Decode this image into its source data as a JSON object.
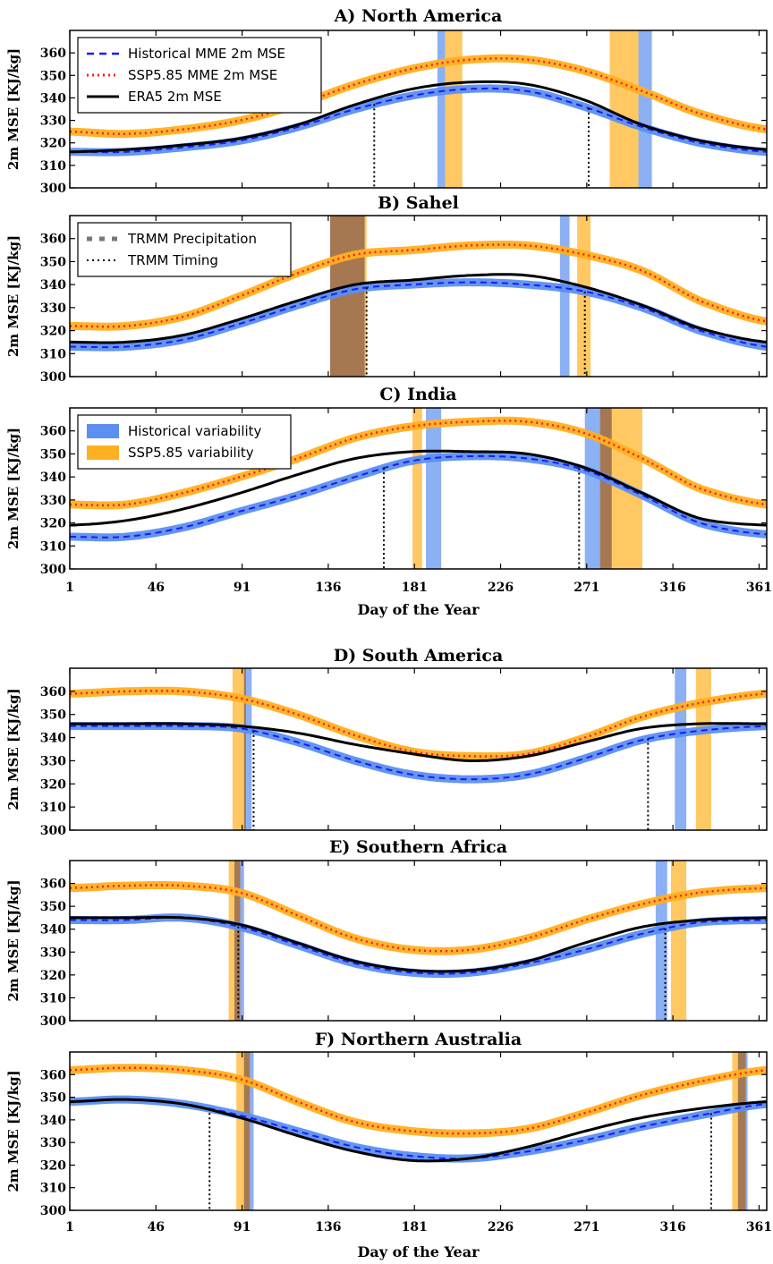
{
  "chart_data": [
    {
      "type": "line",
      "title": "A) North America",
      "ylabel": "2m MSE [KJ/kg]",
      "xlim": [
        1,
        365
      ],
      "ylim": [
        300,
        370
      ],
      "yticks": [
        300,
        310,
        320,
        330,
        340,
        350,
        360
      ],
      "xticks": [
        1,
        46,
        91,
        136,
        181,
        226,
        271,
        316,
        361
      ],
      "series": [
        {
          "name": "Historical MME 2m MSE",
          "style": "dashed",
          "color": "#1a1aff",
          "band_color": "#5b8ff0",
          "x": [
            1,
            30,
            60,
            90,
            120,
            150,
            180,
            210,
            240,
            270,
            300,
            330,
            365
          ],
          "y": [
            316,
            316,
            318,
            321,
            327,
            335,
            341,
            344,
            343,
            336,
            327,
            320,
            316
          ]
        },
        {
          "name": "SSP5.85 MME 2m MSE",
          "style": "dotted",
          "color": "#ff1a1a",
          "band_color": "#ffb020",
          "x": [
            1,
            30,
            60,
            90,
            120,
            150,
            180,
            210,
            240,
            270,
            300,
            330,
            365
          ],
          "y": [
            325,
            324,
            326,
            330,
            337,
            346,
            353,
            357,
            357,
            352,
            343,
            333,
            326
          ]
        },
        {
          "name": "ERA5 2m MSE",
          "style": "solid",
          "color": "#000000",
          "x": [
            1,
            30,
            60,
            90,
            120,
            150,
            180,
            210,
            240,
            270,
            300,
            330,
            365
          ],
          "y": [
            316,
            317,
            319,
            322,
            328,
            337,
            344,
            347,
            346,
            339,
            328,
            321,
            317
          ]
        }
      ],
      "hist_onset": [
        193,
        197
      ],
      "hist_withdrawal": [
        298,
        305
      ],
      "ssp_onset": [
        197,
        206
      ],
      "ssp_withdrawal": [
        283,
        298
      ],
      "timing_lines": [
        160,
        272
      ],
      "legend": [
        "Historical MME 2m MSE",
        "SSP5.85 MME 2m MSE",
        "ERA5 2m MSE"
      ],
      "legend_location": "upper-left"
    },
    {
      "type": "line",
      "title": "B) Sahel",
      "ylabel": "2m MSE [KJ/kg]",
      "xlim": [
        1,
        365
      ],
      "ylim": [
        300,
        370
      ],
      "yticks": [
        300,
        310,
        320,
        330,
        340,
        350,
        360
      ],
      "xticks": [
        1,
        46,
        91,
        136,
        181,
        226,
        271,
        316,
        361
      ],
      "series": [
        {
          "name": "Historical MME 2m MSE",
          "style": "dashed",
          "color": "#1a1aff",
          "band_color": "#5b8ff0",
          "x": [
            1,
            30,
            60,
            90,
            120,
            150,
            180,
            210,
            240,
            270,
            300,
            330,
            365
          ],
          "y": [
            313,
            313,
            316,
            323,
            331,
            338,
            340,
            341,
            340,
            337,
            330,
            320,
            313
          ]
        },
        {
          "name": "SSP5.85 MME 2m MSE",
          "style": "dotted",
          "color": "#ff1a1a",
          "band_color": "#ffb020",
          "x": [
            1,
            30,
            60,
            90,
            120,
            150,
            180,
            210,
            240,
            270,
            300,
            330,
            365
          ],
          "y": [
            322,
            322,
            326,
            335,
            345,
            353,
            355,
            357,
            357,
            353,
            346,
            333,
            324
          ]
        },
        {
          "name": "ERA5 2m MSE",
          "style": "solid",
          "color": "#000000",
          "x": [
            1,
            30,
            60,
            90,
            120,
            150,
            180,
            210,
            240,
            270,
            300,
            330,
            365
          ],
          "y": [
            315,
            315,
            318,
            325,
            333,
            340,
            342,
            344,
            344,
            339,
            331,
            321,
            315
          ]
        }
      ],
      "hist_onset": [
        137,
        155
      ],
      "hist_withdrawal": [
        257,
        262
      ],
      "ssp_onset": [
        137,
        156
      ],
      "ssp_withdrawal": [
        266,
        273
      ],
      "timing_lines": [
        156,
        270
      ],
      "legend": [
        "TRMM Precipitation",
        "TRMM Timing"
      ],
      "legend_location": "upper-left"
    },
    {
      "type": "line",
      "title": "C) India",
      "ylabel": "2m MSE [KJ/kg]",
      "xlabel": "Day of the Year",
      "xlim": [
        1,
        365
      ],
      "ylim": [
        300,
        370
      ],
      "yticks": [
        300,
        310,
        320,
        330,
        340,
        350,
        360
      ],
      "xticks": [
        1,
        46,
        91,
        136,
        181,
        226,
        271,
        316,
        361
      ],
      "series": [
        {
          "name": "Historical MME 2m MSE",
          "style": "dashed",
          "color": "#1a1aff",
          "band_color": "#5b8ff0",
          "x": [
            1,
            30,
            60,
            90,
            120,
            150,
            180,
            210,
            240,
            270,
            300,
            330,
            365
          ],
          "y": [
            314,
            314,
            318,
            325,
            332,
            340,
            347,
            349,
            348,
            343,
            332,
            320,
            315
          ]
        },
        {
          "name": "SSP5.85 MME 2m MSE",
          "style": "dotted",
          "color": "#ff1a1a",
          "band_color": "#ffb020",
          "x": [
            1,
            30,
            60,
            90,
            120,
            150,
            180,
            210,
            240,
            270,
            300,
            330,
            365
          ],
          "y": [
            328,
            328,
            333,
            340,
            348,
            357,
            362,
            364,
            364,
            359,
            348,
            335,
            328
          ]
        },
        {
          "name": "ERA5 2m MSE",
          "style": "solid",
          "color": "#000000",
          "x": [
            1,
            30,
            60,
            90,
            120,
            150,
            180,
            210,
            240,
            270,
            300,
            330,
            365
          ],
          "y": [
            319,
            321,
            326,
            333,
            341,
            348,
            351,
            351,
            350,
            344,
            333,
            322,
            319
          ]
        }
      ],
      "hist_onset": [
        187,
        195
      ],
      "hist_withdrawal": [
        270,
        284
      ],
      "ssp_onset": [
        180,
        185
      ],
      "ssp_withdrawal": [
        278,
        300
      ],
      "timing_lines": [
        165,
        267
      ],
      "legend": [
        "Historical variability",
        "SSP5.85 variability"
      ],
      "legend_location": "upper-left"
    },
    {
      "type": "line",
      "title": "D) South America",
      "ylabel": "2m MSE [KJ/kg]",
      "xlim": [
        1,
        365
      ],
      "ylim": [
        300,
        370
      ],
      "yticks": [
        300,
        310,
        320,
        330,
        340,
        350,
        360
      ],
      "xticks": [
        1,
        46,
        91,
        136,
        181,
        226,
        271,
        316,
        361
      ],
      "series": [
        {
          "name": "Historical MME 2m MSE",
          "style": "dashed",
          "color": "#1a1aff",
          "band_color": "#5b8ff0",
          "x": [
            1,
            30,
            60,
            90,
            120,
            150,
            180,
            210,
            240,
            270,
            300,
            330,
            365
          ],
          "y": [
            345,
            345,
            345,
            344,
            338,
            330,
            324,
            322,
            324,
            331,
            339,
            343,
            345
          ]
        },
        {
          "name": "SSP5.85 MME 2m MSE",
          "style": "dotted",
          "color": "#ff1a1a",
          "band_color": "#ffb020",
          "x": [
            1,
            30,
            60,
            90,
            120,
            150,
            180,
            210,
            240,
            270,
            300,
            330,
            365
          ],
          "y": [
            359,
            360,
            360,
            357,
            350,
            341,
            334,
            332,
            333,
            340,
            349,
            355,
            359
          ]
        },
        {
          "name": "ERA5 2m MSE",
          "style": "solid",
          "color": "#000000",
          "x": [
            1,
            30,
            60,
            90,
            120,
            150,
            180,
            210,
            240,
            270,
            300,
            330,
            365
          ],
          "y": [
            346,
            346,
            346,
            345,
            342,
            337,
            333,
            330,
            332,
            338,
            344,
            346,
            346
          ]
        }
      ],
      "hist_onset": [
        92,
        96
      ],
      "hist_withdrawal": [
        317,
        323
      ],
      "ssp_onset": [
        86,
        93
      ],
      "ssp_withdrawal": [
        328,
        336
      ],
      "timing_lines": [
        97,
        303
      ],
      "legend_location": "none"
    },
    {
      "type": "line",
      "title": "E) Southern Africa",
      "ylabel": "2m MSE [KJ/kg]",
      "xlim": [
        1,
        365
      ],
      "ylim": [
        300,
        370
      ],
      "yticks": [
        300,
        310,
        320,
        330,
        340,
        350,
        360
      ],
      "xticks": [
        1,
        46,
        91,
        136,
        181,
        226,
        271,
        316,
        361
      ],
      "series": [
        {
          "name": "Historical MME 2m MSE",
          "style": "dashed",
          "color": "#1a1aff",
          "band_color": "#5b8ff0",
          "x": [
            1,
            30,
            60,
            90,
            120,
            150,
            180,
            210,
            240,
            270,
            300,
            330,
            365
          ],
          "y": [
            344,
            344,
            345,
            341,
            333,
            325,
            321,
            321,
            325,
            331,
            338,
            343,
            344
          ]
        },
        {
          "name": "SSP5.85 MME 2m MSE",
          "style": "dotted",
          "color": "#ff1a1a",
          "band_color": "#ffb020",
          "x": [
            1,
            30,
            60,
            90,
            120,
            150,
            180,
            210,
            240,
            270,
            300,
            330,
            365
          ],
          "y": [
            358,
            359,
            359,
            356,
            346,
            336,
            331,
            331,
            336,
            344,
            351,
            356,
            358
          ]
        },
        {
          "name": "ERA5 2m MSE",
          "style": "solid",
          "color": "#000000",
          "x": [
            1,
            30,
            60,
            90,
            120,
            150,
            180,
            210,
            240,
            270,
            300,
            330,
            365
          ],
          "y": [
            345,
            345,
            345,
            342,
            334,
            326,
            322,
            322,
            326,
            334,
            341,
            344,
            345
          ]
        }
      ],
      "hist_onset": [
        87,
        92
      ],
      "hist_withdrawal": [
        307,
        313
      ],
      "ssp_onset": [
        84,
        90
      ],
      "ssp_withdrawal": [
        315,
        323
      ],
      "timing_lines": [
        89,
        312
      ],
      "legend_location": "none"
    },
    {
      "type": "line",
      "title": "F) Northern Australia",
      "ylabel": "2m MSE [KJ/kg]",
      "xlabel": "Day of the Year",
      "xlim": [
        1,
        365
      ],
      "ylim": [
        300,
        370
      ],
      "yticks": [
        300,
        310,
        320,
        330,
        340,
        350,
        360
      ],
      "xticks": [
        1,
        46,
        91,
        136,
        181,
        226,
        271,
        316,
        361
      ],
      "series": [
        {
          "name": "Historical MME 2m MSE",
          "style": "dashed",
          "color": "#1a1aff",
          "band_color": "#5b8ff0",
          "x": [
            1,
            30,
            60,
            90,
            120,
            150,
            180,
            210,
            240,
            270,
            300,
            330,
            365
          ],
          "y": [
            348,
            349,
            347,
            342,
            335,
            328,
            324,
            323,
            326,
            331,
            337,
            342,
            347
          ]
        },
        {
          "name": "SSP5.85 MME 2m MSE",
          "style": "dotted",
          "color": "#ff1a1a",
          "band_color": "#ffb020",
          "x": [
            1,
            30,
            60,
            90,
            120,
            150,
            180,
            210,
            240,
            270,
            300,
            330,
            365
          ],
          "y": [
            362,
            363,
            362,
            358,
            348,
            339,
            335,
            334,
            336,
            343,
            351,
            357,
            362
          ]
        },
        {
          "name": "ERA5 2m MSE",
          "style": "solid",
          "color": "#000000",
          "x": [
            1,
            30,
            60,
            90,
            120,
            150,
            180,
            210,
            240,
            270,
            300,
            330,
            365
          ],
          "y": [
            348,
            349,
            347,
            341,
            333,
            326,
            322,
            323,
            328,
            335,
            341,
            345,
            348
          ]
        }
      ],
      "hist_onset": [
        92,
        97
      ],
      "hist_withdrawal": [
        350,
        355
      ],
      "ssp_onset": [
        88,
        95
      ],
      "ssp_withdrawal": [
        347,
        354
      ],
      "timing_lines": [
        74,
        336
      ],
      "legend_location": "none"
    }
  ]
}
